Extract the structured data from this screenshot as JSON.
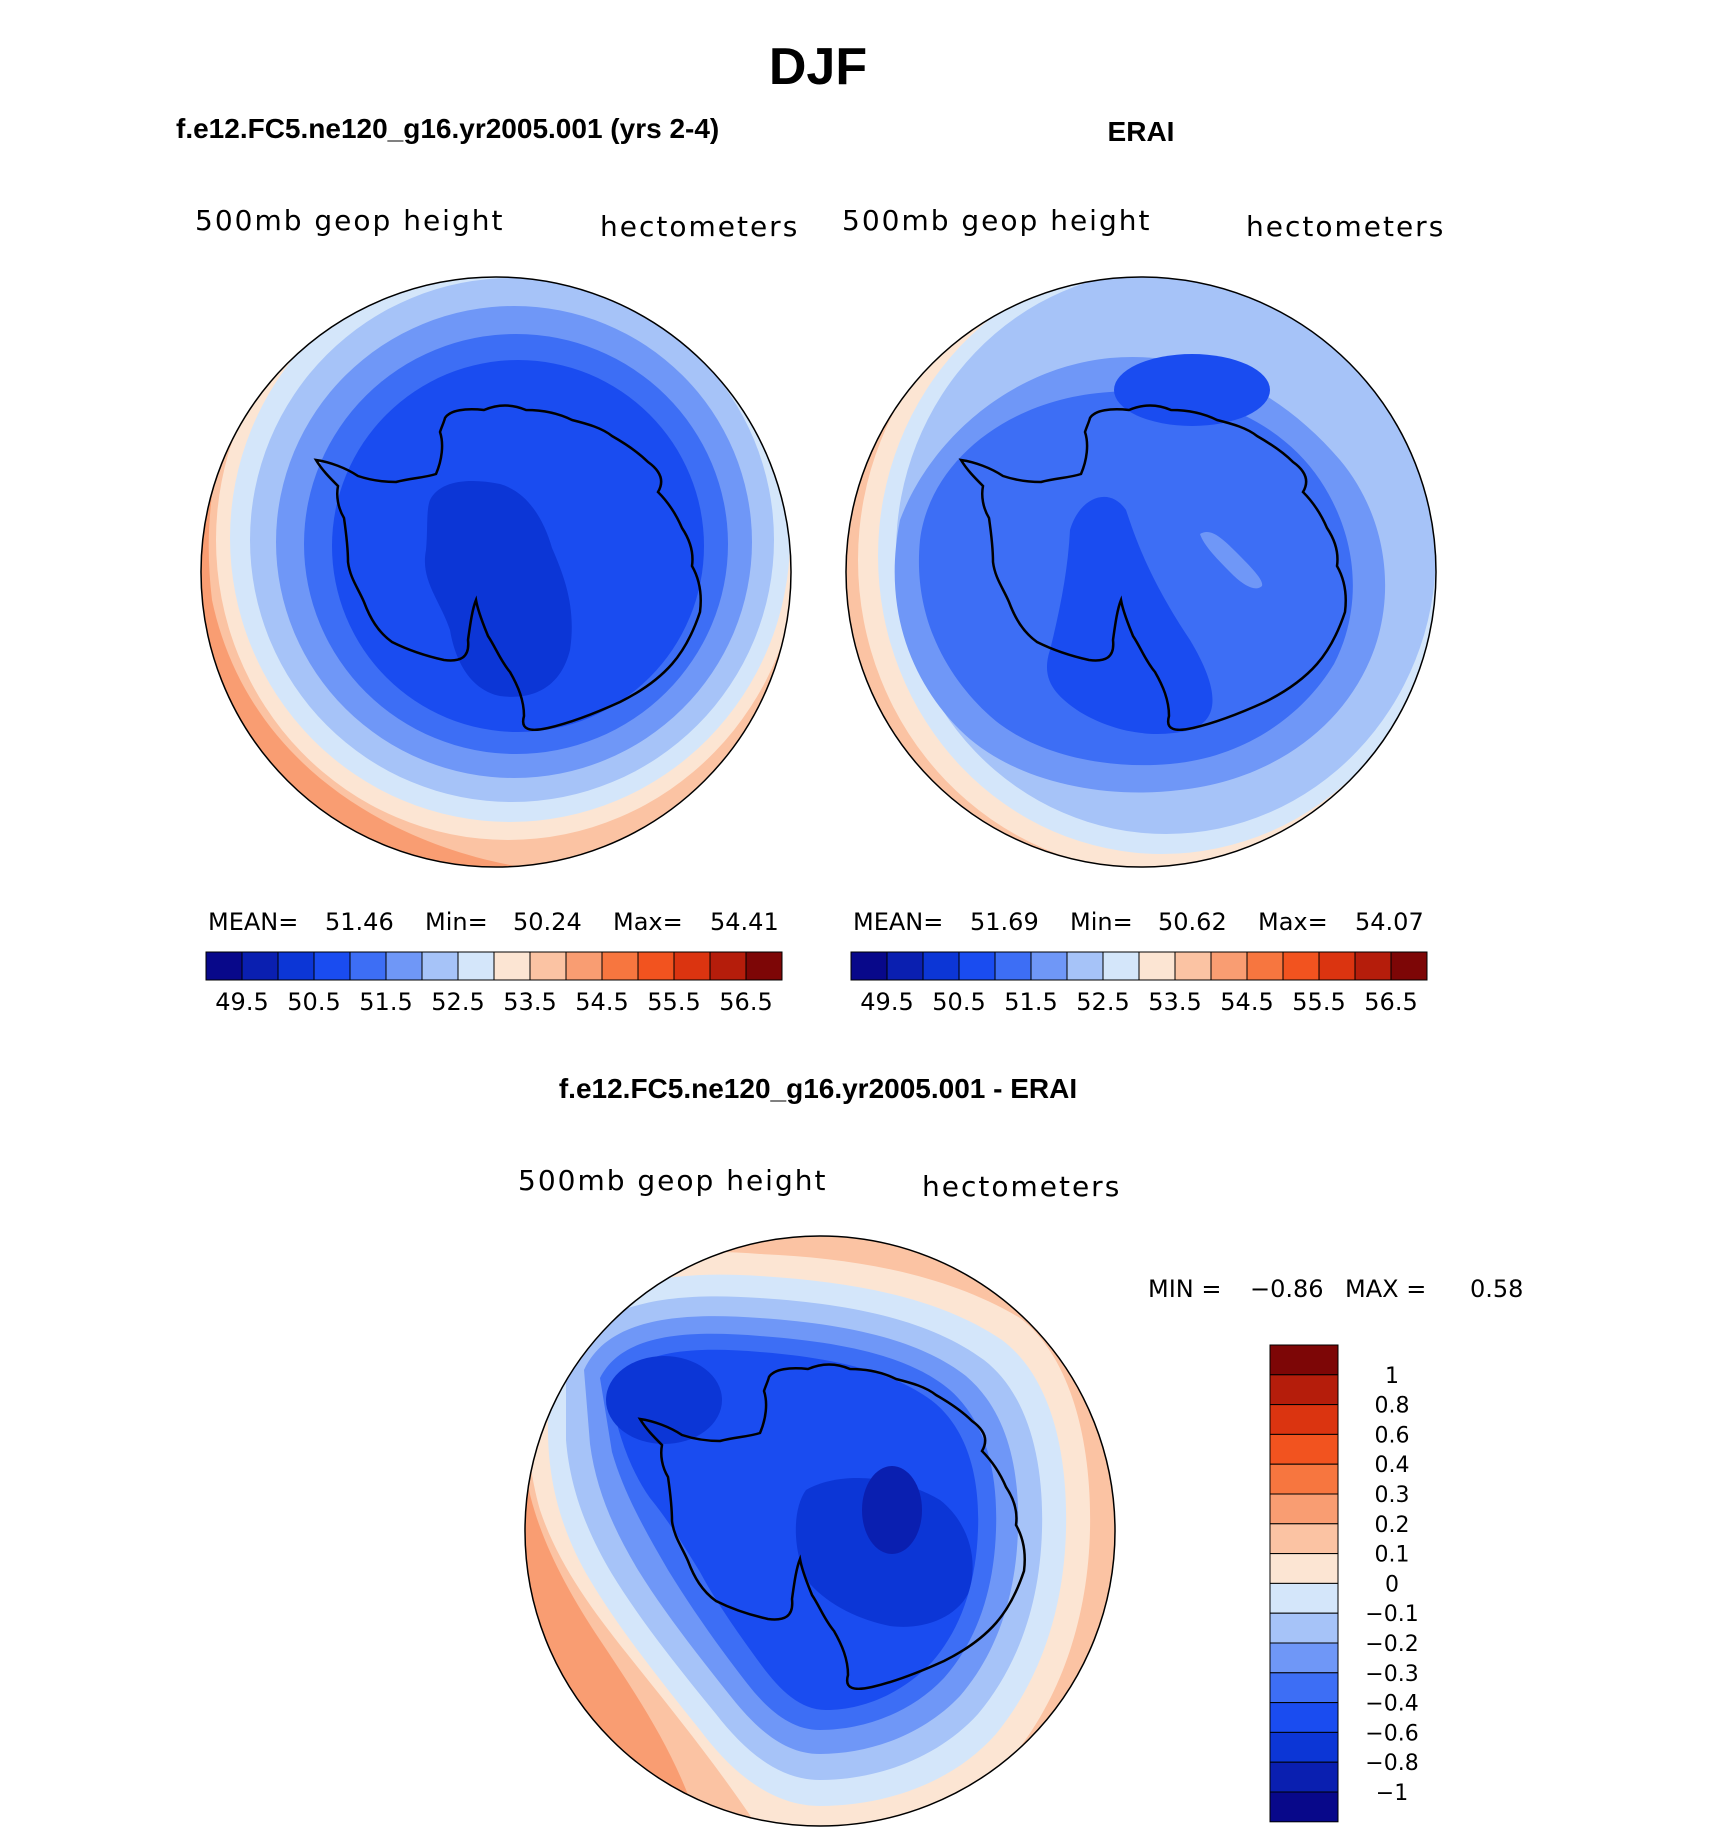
{
  "main_title": "DJF",
  "chart_data": [
    {
      "type": "heatmap",
      "projection": "south-polar-stereographic",
      "title": "f.e12.FC5.ne120_g16.yr2005.001 (yrs 2-4)",
      "left_label": "500mb geop height",
      "right_label": "hectometers",
      "stats": {
        "mean_label": "MEAN=",
        "mean": "51.46",
        "min_label": "Min=",
        "min": "50.24",
        "max_label": "Max=",
        "max": "54.41"
      },
      "contour_levels": [
        49.5,
        50,
        50.5,
        51,
        51.5,
        52,
        52.5,
        53,
        53.5,
        54,
        54.5,
        55,
        55.5,
        56,
        56.5
      ],
      "colorbar_labels": [
        "49.5",
        "50.5",
        "51.5",
        "52.5",
        "53.5",
        "54.5",
        "55.5",
        "56.5"
      ],
      "colors": [
        "#08088a",
        "#0a1fb0",
        "#0c36d6",
        "#1a4cf0",
        "#3d6ef5",
        "#6f97f7",
        "#a6c3f8",
        "#d4e6fa",
        "#fce5d3",
        "#fbc3a3",
        "#f99d72",
        "#f7763f",
        "#f2531f",
        "#db3410",
        "#b51d0b",
        "#7d0606"
      ]
    },
    {
      "type": "heatmap",
      "projection": "south-polar-stereographic",
      "title": "ERAI",
      "left_label": "500mb geop height",
      "right_label": "hectometers",
      "stats": {
        "mean_label": "MEAN=",
        "mean": "51.69",
        "min_label": "Min=",
        "min": "50.62",
        "max_label": "Max=",
        "max": "54.07"
      },
      "contour_levels": [
        49.5,
        50,
        50.5,
        51,
        51.5,
        52,
        52.5,
        53,
        53.5,
        54,
        54.5,
        55,
        55.5,
        56,
        56.5
      ],
      "colorbar_labels": [
        "49.5",
        "50.5",
        "51.5",
        "52.5",
        "53.5",
        "54.5",
        "55.5",
        "56.5"
      ],
      "colors": [
        "#08088a",
        "#0a1fb0",
        "#0c36d6",
        "#1a4cf0",
        "#3d6ef5",
        "#6f97f7",
        "#a6c3f8",
        "#d4e6fa",
        "#fce5d3",
        "#fbc3a3",
        "#f99d72",
        "#f7763f",
        "#f2531f",
        "#db3410",
        "#b51d0b",
        "#7d0606"
      ]
    },
    {
      "type": "heatmap",
      "projection": "south-polar-stereographic",
      "title": "f.e12.FC5.ne120_g16.yr2005.001 - ERAI",
      "left_label": "500mb geop height",
      "right_label": "hectometers",
      "stats": {
        "min_label": "MIN =",
        "min": "−0.86",
        "max_label": "MAX =",
        "max": "0.58"
      },
      "contour_levels": [
        -1,
        -0.8,
        -0.6,
        -0.4,
        -0.3,
        -0.2,
        -0.1,
        0,
        0.1,
        0.2,
        0.3,
        0.4,
        0.6,
        0.8,
        1
      ],
      "colorbar_labels": [
        "1",
        "0.8",
        "0.6",
        "0.4",
        "0.3",
        "0.2",
        "0.1",
        "0",
        "−0.1",
        "−0.2",
        "−0.3",
        "−0.4",
        "−0.6",
        "−0.8",
        "−1"
      ],
      "colors": [
        "#7d0606",
        "#b51d0b",
        "#db3410",
        "#f2531f",
        "#f7763f",
        "#f99d72",
        "#fbc3a3",
        "#fce5d3",
        "#d4e6fa",
        "#a6c3f8",
        "#6f97f7",
        "#3d6ef5",
        "#1a4cf0",
        "#0c36d6",
        "#0a1fb0",
        "#08088a"
      ]
    }
  ]
}
